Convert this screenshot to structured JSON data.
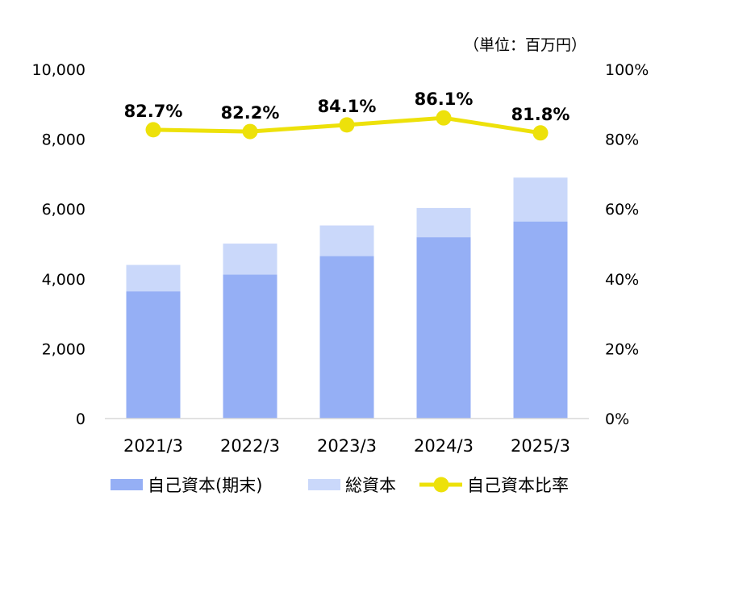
{
  "unit_label": "（単位：百万円）",
  "chart_data": {
    "type": "bar",
    "categories": [
      "2021/3",
      "2022/3",
      "2023/3",
      "2024/3",
      "2025/3"
    ],
    "series": [
      {
        "name": "自己資本(期末)",
        "kind": "bar",
        "color": "#95aff5",
        "values": [
          3640,
          4120,
          4650,
          5190,
          5640
        ]
      },
      {
        "name": "総資本",
        "kind": "bar",
        "color": "#cad8fa",
        "values": [
          4400,
          5010,
          5530,
          6030,
          6900
        ]
      },
      {
        "name": "自己資本比率",
        "kind": "line",
        "axis": "right",
        "color": "#ede10a",
        "values": [
          82.7,
          82.2,
          84.1,
          86.1,
          81.8
        ],
        "labels": [
          "82.7%",
          "82.2%",
          "84.1%",
          "86.1%",
          "81.8%"
        ]
      }
    ],
    "ylim": [
      0,
      10000
    ],
    "yticks": [
      "0",
      "2,000",
      "4,000",
      "6,000",
      "8,000",
      "10,000"
    ],
    "y2lim": [
      0,
      100
    ],
    "y2ticks": [
      "0%",
      "20%",
      "40%",
      "60%",
      "80%",
      "100%"
    ],
    "legend_position": "bottom"
  }
}
